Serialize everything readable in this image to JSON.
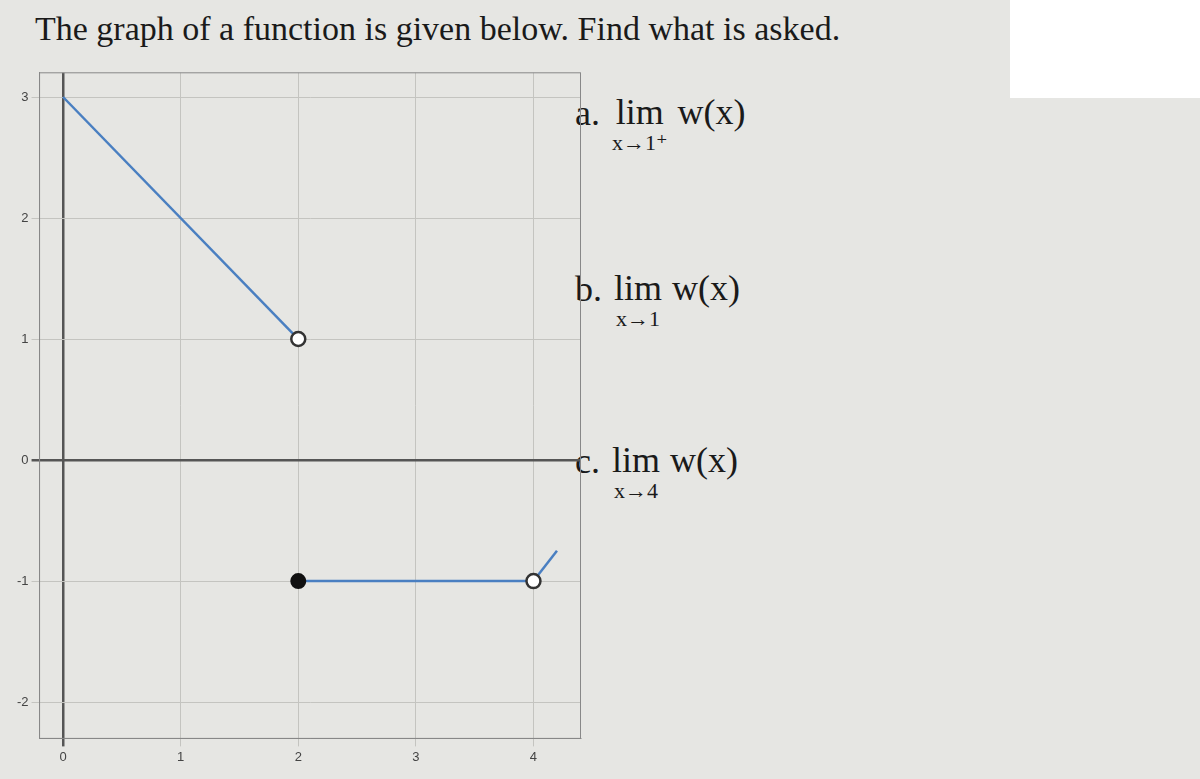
{
  "chart_data": {
    "type": "line",
    "title": "The graph of a function is given below. Find what is asked.",
    "annotations": [
      {
        "label": "a.",
        "text": "lim",
        "sub": "x→1⁺",
        "expr": "w(x)"
      },
      {
        "label": "b.",
        "text": "lim",
        "sub": "x→1",
        "expr": "w(x)"
      },
      {
        "label": "c.",
        "text": "lim",
        "sub": "x→4",
        "expr": "w(x)"
      }
    ],
    "xlim": [
      -0.2,
      4.4
    ],
    "xticks": [
      0,
      1,
      2,
      3,
      4
    ],
    "ylim": [
      -2.3,
      3.2
    ],
    "yticks": [
      -2,
      -1,
      0,
      1,
      2,
      3
    ],
    "grid": true,
    "series": [
      {
        "type": "line",
        "color": "#4a7fc1",
        "x": [
          0,
          2
        ],
        "values": [
          3,
          1
        ]
      },
      {
        "type": "line",
        "color": "#4a7fc1",
        "x": [
          2,
          4
        ],
        "values": [
          -1,
          -1
        ]
      },
      {
        "type": "line",
        "color": "#4a7fc1",
        "x": [
          4,
          4.2
        ],
        "values": [
          -1,
          -0.75
        ]
      },
      {
        "type": "scatter",
        "marker": "open circle",
        "color": "#333333",
        "x": [
          2,
          4
        ],
        "values": [
          1,
          -1
        ]
      },
      {
        "type": "scatter",
        "marker": "filled circle",
        "color": "#111111",
        "x": [
          2
        ],
        "values": [
          -1
        ]
      }
    ]
  }
}
